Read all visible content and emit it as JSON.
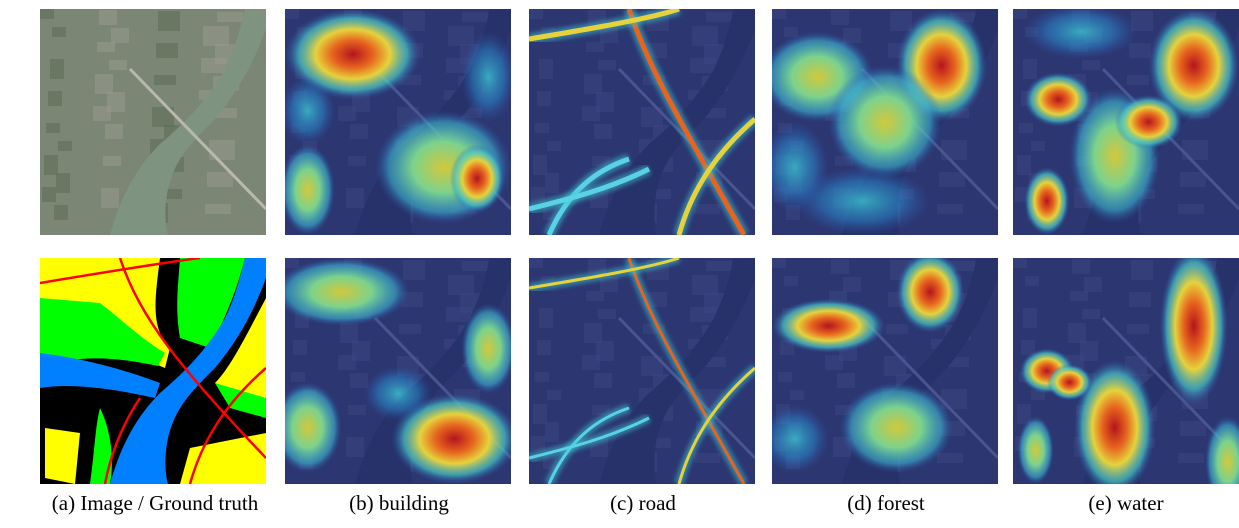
{
  "captions": [
    "(a) Image / Ground truth",
    "(b) building",
    "(c) road",
    "(d) forest",
    "(e) water"
  ]
}
